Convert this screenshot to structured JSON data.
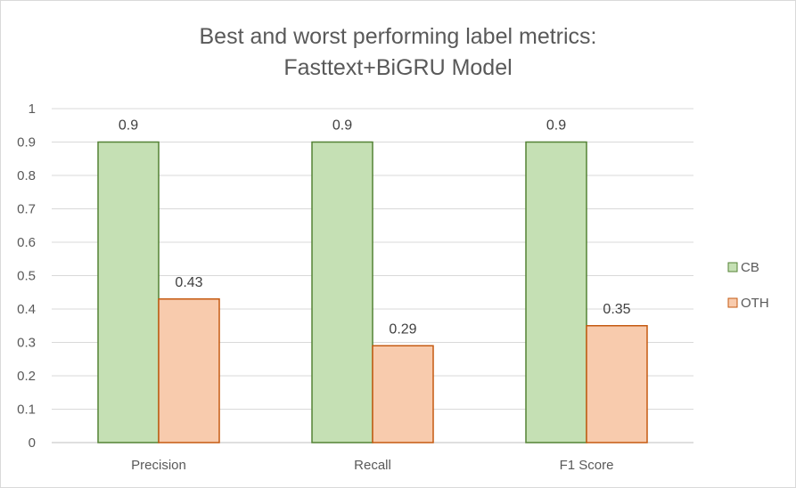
{
  "chart_data": {
    "type": "bar",
    "title": [
      "Best and worst performing label metrics:",
      "Fasttext+BiGRU Model"
    ],
    "categories": [
      "Precision",
      "Recall",
      "F1 Score"
    ],
    "series": [
      {
        "name": "CB",
        "values": [
          0.9,
          0.9,
          0.9
        ],
        "fill": "#c5e0b4",
        "stroke": "#548235"
      },
      {
        "name": "OTH",
        "values": [
          0.43,
          0.29,
          0.35
        ],
        "fill": "#f8cbad",
        "stroke": "#c55a11"
      }
    ],
    "yticks": [
      "0",
      "0.1",
      "0.2",
      "0.3",
      "0.4",
      "0.5",
      "0.6",
      "0.7",
      "0.8",
      "0.9",
      "1"
    ],
    "ylim": [
      0,
      1
    ],
    "grid": true,
    "legend_position": "right"
  }
}
